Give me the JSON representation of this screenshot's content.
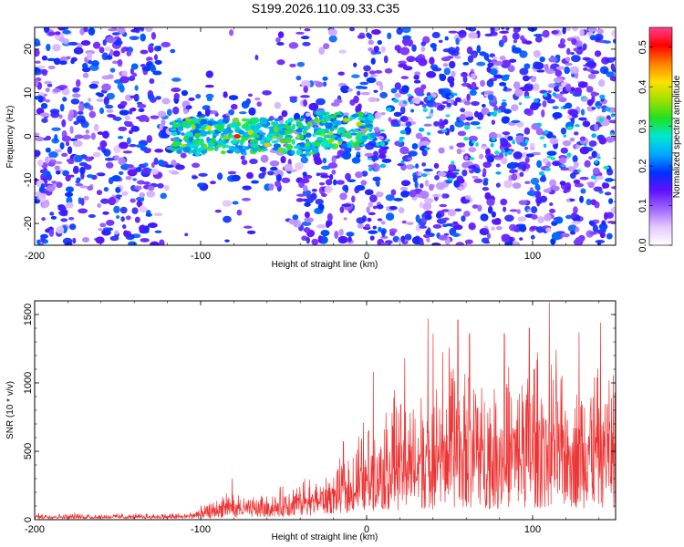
{
  "title": "S199.2026.110.09.33.C35",
  "chart_data": [
    {
      "type": "heatmap",
      "xlabel": "Height of straight line (km)",
      "ylabel": "Frequency (Hz)",
      "xlim": [
        -200,
        150
      ],
      "ylim": [
        -25,
        25
      ],
      "xticks": [
        -200,
        -100,
        0,
        100
      ],
      "xtick_labels": [
        "-200",
        "-100",
        "0",
        "100"
      ],
      "yticks": [
        20,
        10,
        0,
        -10,
        -20
      ],
      "ytick_labels": [
        "20",
        "10",
        "0",
        "-10",
        "-20"
      ],
      "colorbar": {
        "label": "Normalized spectral amplitude",
        "range": [
          0,
          0.55
        ],
        "ticks": [
          0.0,
          0.1,
          0.2,
          0.3,
          0.4,
          0.5
        ],
        "tick_labels": [
          "0.0",
          "0.1",
          "0.2",
          "0.3",
          "0.4",
          "0.5"
        ],
        "colors": [
          "#ffffff",
          "#e6c8ff",
          "#a066ff",
          "#6010ff",
          "#0030ff",
          "#00a8ff",
          "#00e8d0",
          "#20e020",
          "#a0e000",
          "#ffe000",
          "#ff8000",
          "#ff0000",
          "#ff4090"
        ]
      },
      "band_description": "Dense purple/blue scatter across all heights; bright cyan-green-yellow-red ridge between -115 and 0 km near 0 Hz; peak red near -78 km"
    },
    {
      "type": "line",
      "xlabel": "Height of straight line (km)",
      "ylabel": "SNR (10 * v/v)",
      "xlim": [
        -200,
        150
      ],
      "ylim": [
        0,
        1600
      ],
      "xticks": [
        -200,
        -100,
        0,
        100
      ],
      "xtick_labels": [
        "-200",
        "-100",
        "0",
        "100"
      ],
      "yticks": [
        0,
        500,
        1000,
        1500
      ],
      "ytick_labels": [
        "0",
        "500",
        "1000",
        "1500"
      ],
      "line_color": "#ee3333",
      "envelope": {
        "x": [
          -200,
          -150,
          -110,
          -95,
          -85,
          -70,
          -55,
          -40,
          -25,
          -10,
          0,
          10,
          20,
          30,
          40,
          50,
          60,
          70,
          80,
          90,
          100,
          110,
          120,
          130,
          140,
          150
        ],
        "base": [
          15,
          15,
          15,
          25,
          40,
          40,
          45,
          60,
          90,
          120,
          150,
          160,
          170,
          170,
          180,
          180,
          190,
          190,
          190,
          200,
          200,
          200,
          200,
          200,
          200,
          200
        ],
        "peak": [
          50,
          45,
          50,
          120,
          230,
          170,
          220,
          320,
          350,
          520,
          780,
          900,
          1000,
          1050,
          1200,
          1300,
          1250,
          1150,
          1100,
          1200,
          1250,
          1250,
          1300,
          1200,
          1300,
          1200
        ]
      },
      "spikes": [
        {
          "x": -81,
          "y": 300
        },
        {
          "x": -14,
          "y": 570
        },
        {
          "x": 4,
          "y": 1080
        },
        {
          "x": 23,
          "y": 1180
        },
        {
          "x": 37,
          "y": 1470
        },
        {
          "x": 40,
          "y": 1360
        },
        {
          "x": 55,
          "y": 1460
        },
        {
          "x": 62,
          "y": 1360
        },
        {
          "x": 83,
          "y": 1360
        },
        {
          "x": 98,
          "y": 1400
        },
        {
          "x": 110,
          "y": 1590
        },
        {
          "x": 128,
          "y": 1370
        },
        {
          "x": 141,
          "y": 1440
        }
      ]
    }
  ]
}
